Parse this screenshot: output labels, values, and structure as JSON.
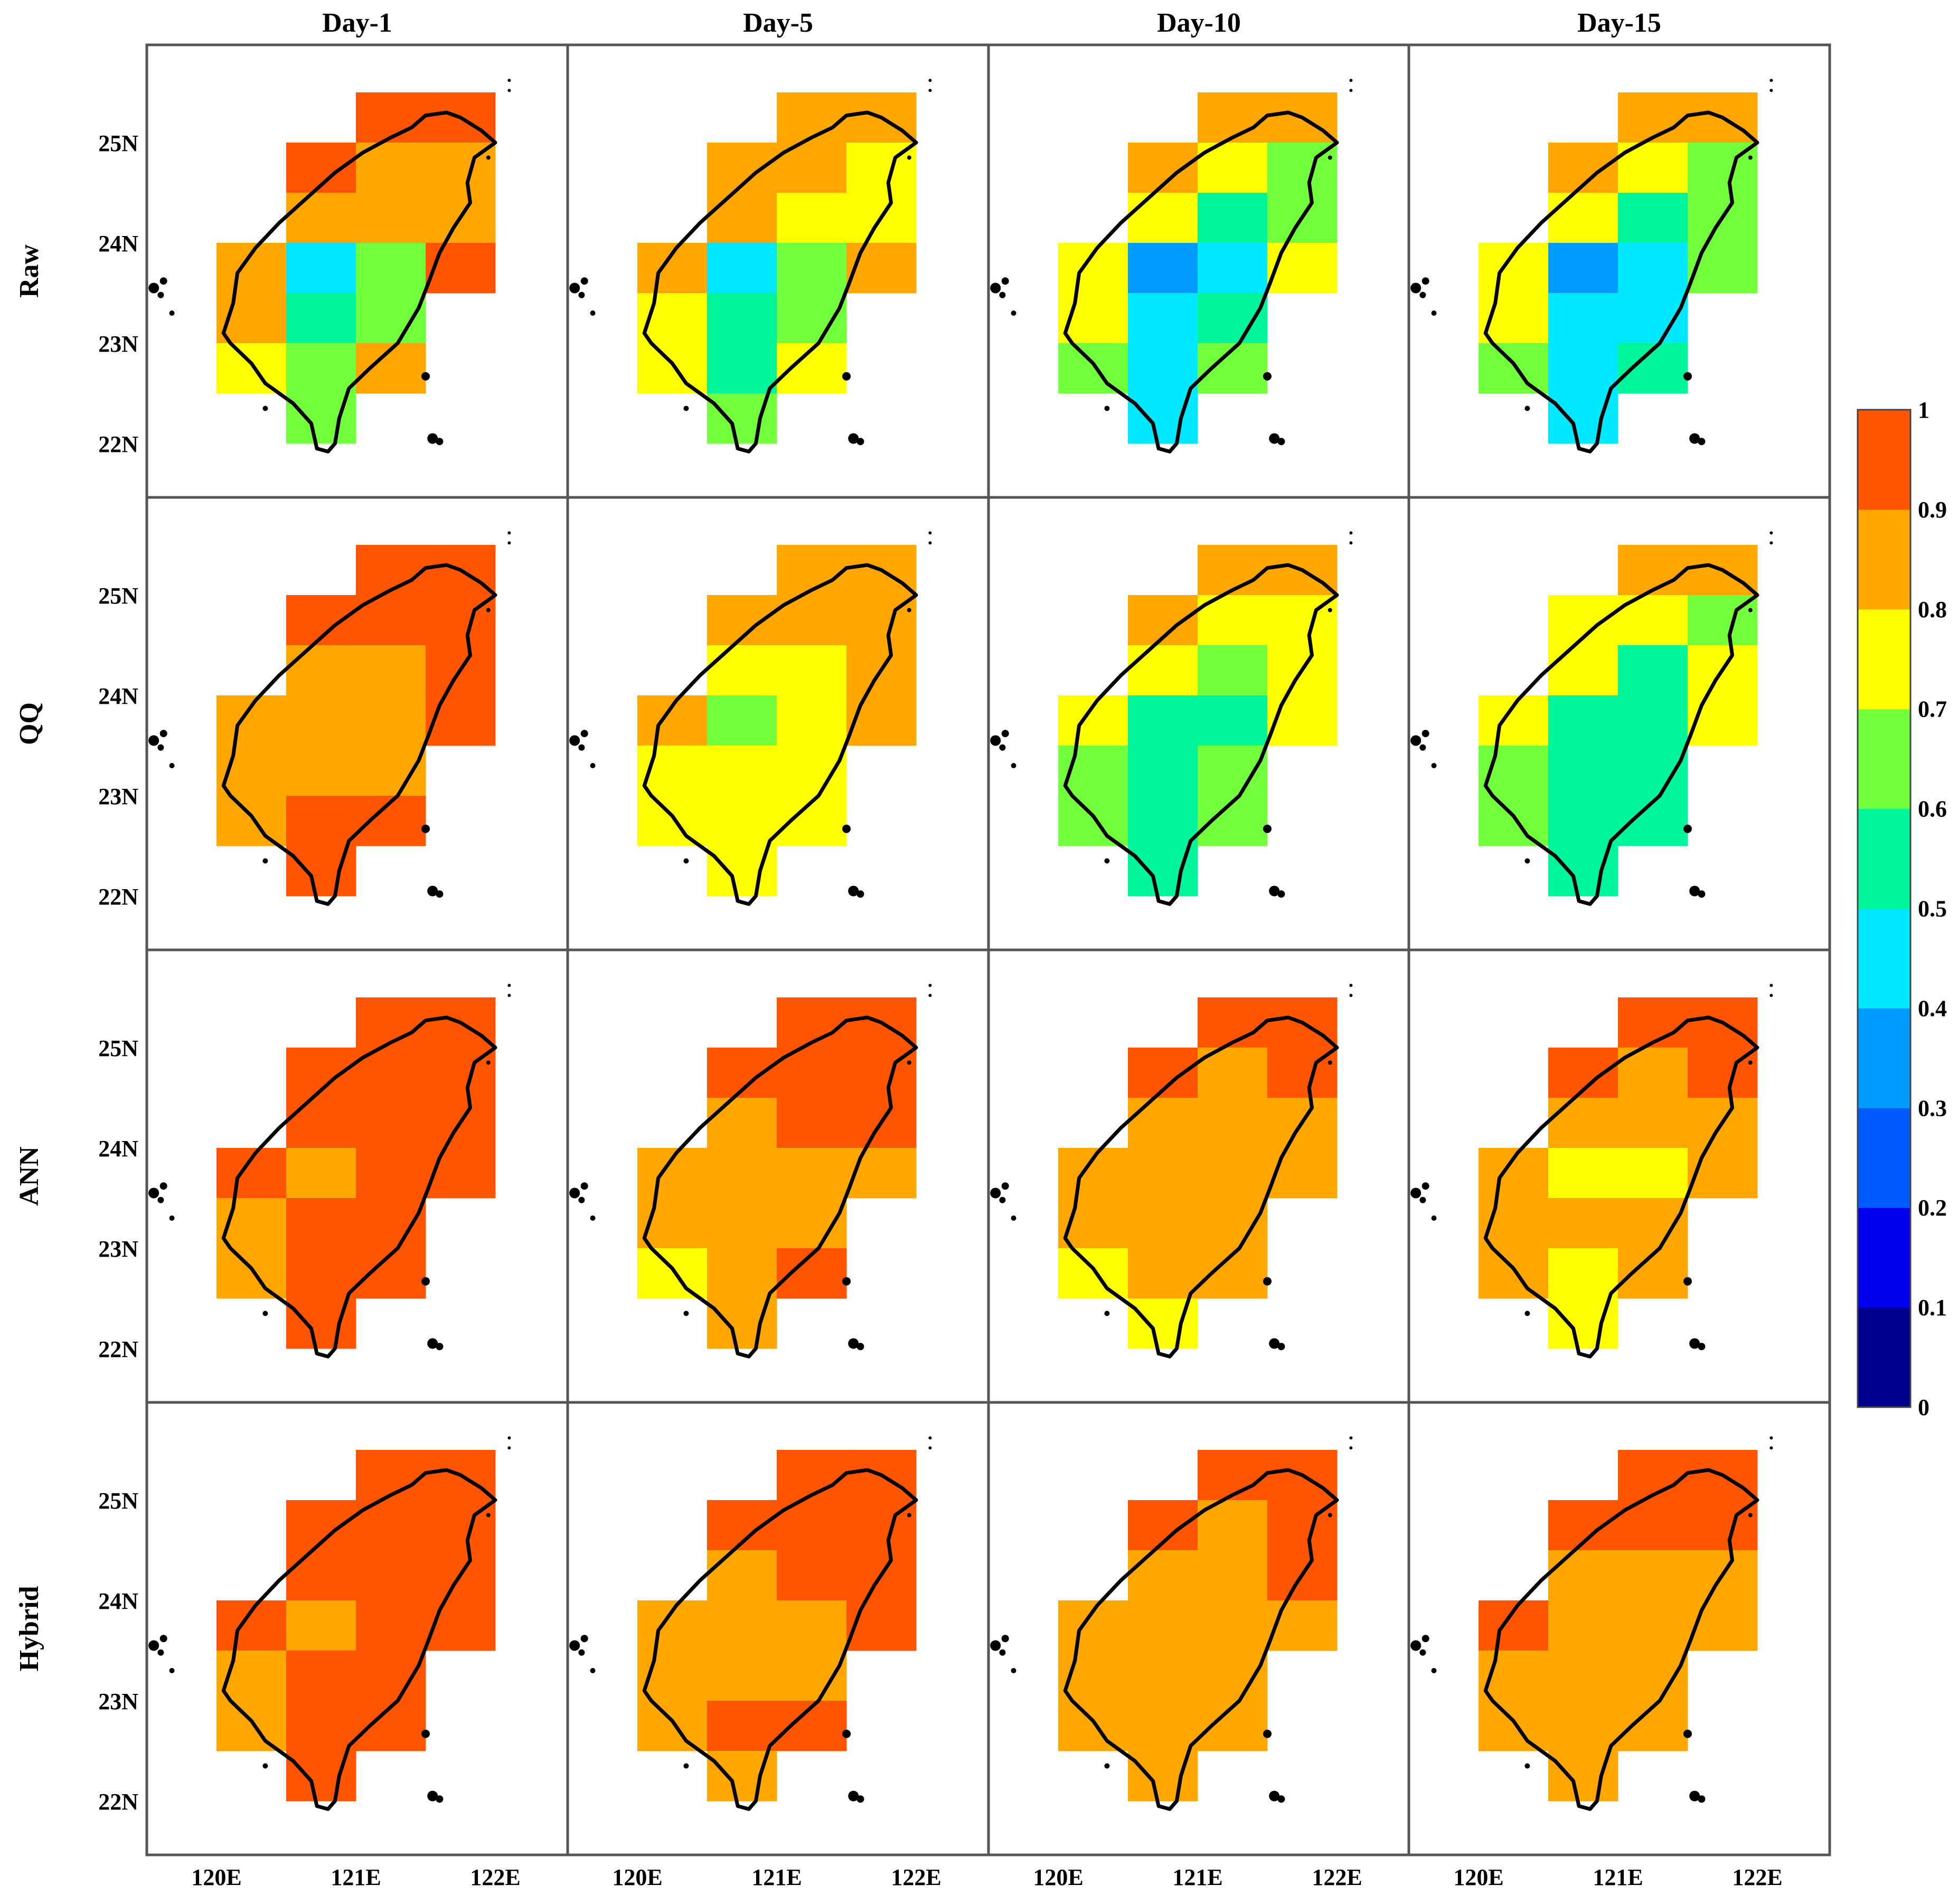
{
  "figure": {
    "column_titles": [
      "Day-1",
      "Day-5",
      "Day-10",
      "Day-15"
    ],
    "row_labels": [
      "Raw",
      "QQ",
      "ANN",
      "Hybrid"
    ],
    "lat_tick_labels": [
      "25N",
      "24N",
      "23N",
      "22N"
    ],
    "lon_tick_labels": [
      "120E",
      "121E",
      "122E"
    ]
  },
  "colorbar": {
    "tick_labels": [
      "1",
      "0.9",
      "0.8",
      "0.7",
      "0.6",
      "0.5",
      "0.4",
      "0.3",
      "0.2",
      "0.1",
      "0"
    ],
    "colors": [
      "#00008f",
      "#0000ee",
      "#005bff",
      "#009bff",
      "#00e8ff",
      "#00f59b",
      "#72ff3c",
      "#ffff00",
      "#ffa600",
      "#ff5400"
    ]
  },
  "chart_data": {
    "type": "heatmap",
    "title": "",
    "xlabel": "",
    "ylabel": "",
    "value_range": [
      0,
      1
    ],
    "lon_range": [
      119.5,
      122.5
    ],
    "lat_range": [
      21.75,
      25.95
    ],
    "grid_cell_deg": 0.5,
    "grid_cells_lon_lat": [
      [
        121.25,
        25.25
      ],
      [
        121.75,
        25.25
      ],
      [
        120.75,
        24.75
      ],
      [
        121.25,
        24.75
      ],
      [
        121.75,
        24.75
      ],
      [
        120.75,
        24.25
      ],
      [
        121.25,
        24.25
      ],
      [
        121.75,
        24.25
      ],
      [
        120.25,
        23.75
      ],
      [
        120.75,
        23.75
      ],
      [
        121.25,
        23.75
      ],
      [
        121.75,
        23.75
      ],
      [
        120.25,
        23.25
      ],
      [
        120.75,
        23.25
      ],
      [
        121.25,
        23.25
      ],
      [
        120.25,
        22.75
      ],
      [
        120.75,
        22.75
      ],
      [
        121.25,
        22.75
      ],
      [
        120.75,
        22.25
      ]
    ],
    "panels": [
      {
        "row": "Raw",
        "col": "Day-1",
        "values": [
          0.95,
          0.95,
          0.95,
          0.85,
          0.85,
          0.85,
          0.85,
          0.85,
          0.85,
          0.45,
          0.65,
          0.95,
          0.85,
          0.55,
          0.65,
          0.75,
          0.65,
          0.85,
          0.65
        ]
      },
      {
        "row": "Raw",
        "col": "Day-5",
        "values": [
          0.85,
          0.85,
          0.85,
          0.85,
          0.75,
          0.85,
          0.75,
          0.75,
          0.85,
          0.45,
          0.65,
          0.85,
          0.75,
          0.55,
          0.65,
          0.75,
          0.55,
          0.75,
          0.65
        ]
      },
      {
        "row": "Raw",
        "col": "Day-10",
        "values": [
          0.85,
          0.85,
          0.85,
          0.75,
          0.65,
          0.75,
          0.55,
          0.65,
          0.75,
          0.35,
          0.45,
          0.75,
          0.75,
          0.45,
          0.55,
          0.65,
          0.45,
          0.65,
          0.45
        ]
      },
      {
        "row": "Raw",
        "col": "Day-15",
        "values": [
          0.85,
          0.85,
          0.85,
          0.75,
          0.65,
          0.75,
          0.55,
          0.65,
          0.75,
          0.35,
          0.45,
          0.65,
          0.75,
          0.45,
          0.45,
          0.65,
          0.45,
          0.55,
          0.45
        ]
      },
      {
        "row": "QQ",
        "col": "Day-1",
        "values": [
          0.95,
          0.95,
          0.95,
          0.95,
          0.95,
          0.85,
          0.85,
          0.95,
          0.85,
          0.85,
          0.85,
          0.95,
          0.85,
          0.85,
          0.85,
          0.85,
          0.95,
          0.95,
          0.95
        ]
      },
      {
        "row": "QQ",
        "col": "Day-5",
        "values": [
          0.85,
          0.85,
          0.85,
          0.85,
          0.85,
          0.75,
          0.75,
          0.85,
          0.85,
          0.65,
          0.75,
          0.85,
          0.75,
          0.75,
          0.75,
          0.75,
          0.75,
          0.75,
          0.75
        ]
      },
      {
        "row": "QQ",
        "col": "Day-10",
        "values": [
          0.85,
          0.85,
          0.85,
          0.75,
          0.75,
          0.75,
          0.65,
          0.75,
          0.75,
          0.55,
          0.55,
          0.75,
          0.65,
          0.55,
          0.65,
          0.65,
          0.55,
          0.65,
          0.55
        ]
      },
      {
        "row": "QQ",
        "col": "Day-15",
        "values": [
          0.85,
          0.85,
          0.75,
          0.75,
          0.65,
          0.75,
          0.55,
          0.75,
          0.75,
          0.55,
          0.55,
          0.75,
          0.65,
          0.55,
          0.55,
          0.65,
          0.55,
          0.55,
          0.55
        ]
      },
      {
        "row": "ANN",
        "col": "Day-1",
        "values": [
          0.95,
          0.95,
          0.95,
          0.95,
          0.95,
          0.95,
          0.95,
          0.95,
          0.95,
          0.85,
          0.95,
          0.95,
          0.85,
          0.95,
          0.95,
          0.85,
          0.95,
          0.95,
          0.95
        ]
      },
      {
        "row": "ANN",
        "col": "Day-5",
        "values": [
          0.95,
          0.95,
          0.95,
          0.95,
          0.95,
          0.85,
          0.95,
          0.95,
          0.85,
          0.85,
          0.85,
          0.85,
          0.85,
          0.85,
          0.85,
          0.75,
          0.85,
          0.95,
          0.85
        ]
      },
      {
        "row": "ANN",
        "col": "Day-10",
        "values": [
          0.95,
          0.95,
          0.95,
          0.85,
          0.95,
          0.85,
          0.85,
          0.85,
          0.85,
          0.85,
          0.85,
          0.85,
          0.85,
          0.85,
          0.85,
          0.75,
          0.85,
          0.85,
          0.75
        ]
      },
      {
        "row": "ANN",
        "col": "Day-15",
        "values": [
          0.95,
          0.95,
          0.95,
          0.85,
          0.95,
          0.85,
          0.85,
          0.85,
          0.85,
          0.75,
          0.75,
          0.85,
          0.85,
          0.85,
          0.85,
          0.85,
          0.75,
          0.85,
          0.75
        ]
      },
      {
        "row": "Hybrid",
        "col": "Day-1",
        "values": [
          0.95,
          0.95,
          0.95,
          0.95,
          0.95,
          0.95,
          0.95,
          0.95,
          0.95,
          0.85,
          0.95,
          0.95,
          0.85,
          0.95,
          0.95,
          0.85,
          0.95,
          0.95,
          0.95
        ]
      },
      {
        "row": "Hybrid",
        "col": "Day-5",
        "values": [
          0.95,
          0.95,
          0.95,
          0.95,
          0.95,
          0.85,
          0.95,
          0.95,
          0.85,
          0.85,
          0.85,
          0.95,
          0.85,
          0.85,
          0.85,
          0.85,
          0.95,
          0.95,
          0.85
        ]
      },
      {
        "row": "Hybrid",
        "col": "Day-10",
        "values": [
          0.95,
          0.95,
          0.95,
          0.85,
          0.95,
          0.85,
          0.85,
          0.95,
          0.85,
          0.85,
          0.85,
          0.85,
          0.85,
          0.85,
          0.85,
          0.85,
          0.85,
          0.85,
          0.85
        ]
      },
      {
        "row": "Hybrid",
        "col": "Day-15",
        "values": [
          0.95,
          0.95,
          0.95,
          0.95,
          0.95,
          0.85,
          0.85,
          0.85,
          0.95,
          0.85,
          0.85,
          0.85,
          0.85,
          0.85,
          0.85,
          0.85,
          0.85,
          0.85,
          0.85
        ]
      }
    ]
  }
}
